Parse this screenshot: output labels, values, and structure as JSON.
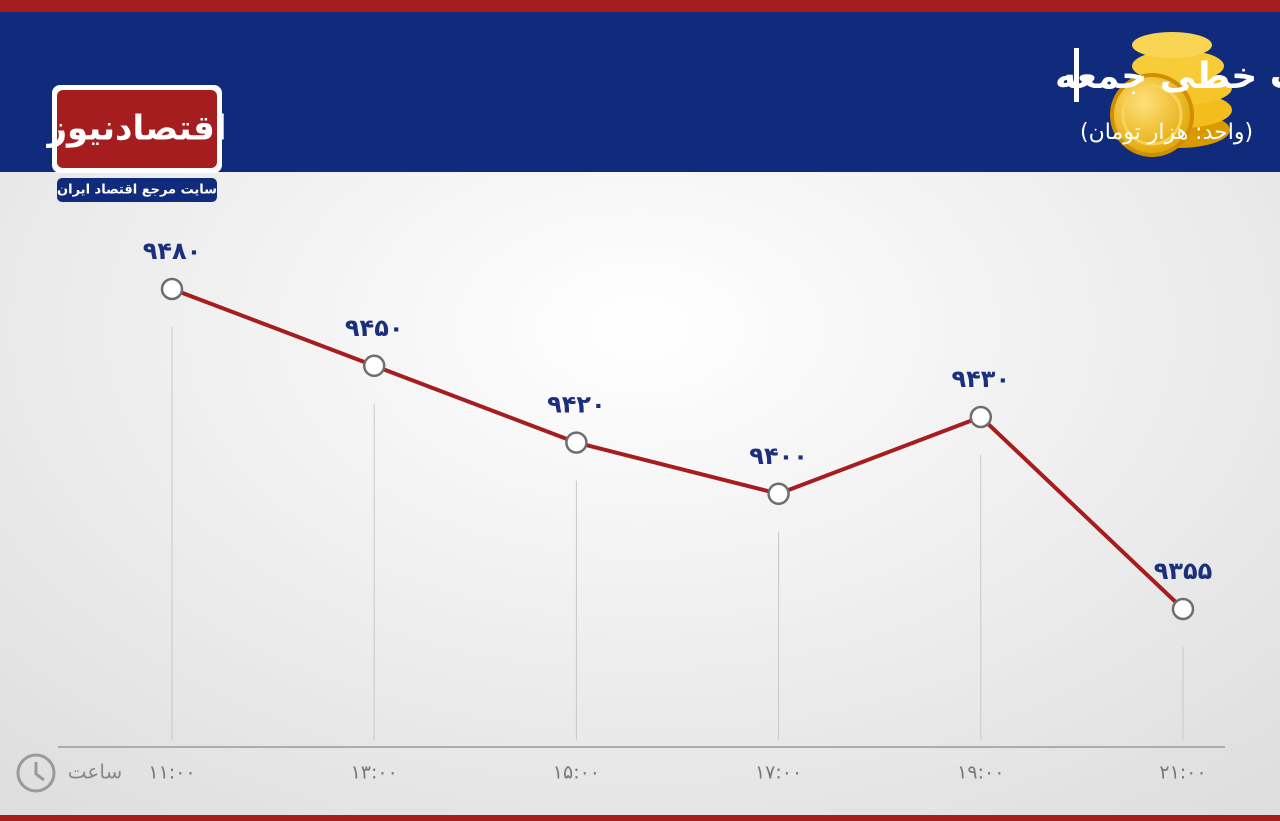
{
  "chart_data": {
    "type": "line",
    "title": "رفتار سکه در معاملات پشت خطی جمعه",
    "subtitle": "(واحد: هزار تومان)",
    "x_label": "ساعت",
    "categories": [
      "۱۱:۰۰",
      "۱۳:۰۰",
      "۱۵:۰۰",
      "۱۷:۰۰",
      "۱۹:۰۰",
      "۲۱:۰۰"
    ],
    "series": [
      {
        "color": "#a51d1f",
        "values": [
          9480,
          9450,
          9420,
          9400,
          9430,
          9355
        ],
        "value_labels": [
          "۹۴۸۰",
          "۹۴۵۰",
          "۹۴۲۰",
          "۹۴۰۰",
          "۹۴۳۰",
          "۹۳۵۵"
        ]
      }
    ]
  },
  "branding": {
    "logo": "اقتصادنیوز",
    "tagline": "سایت مرجع اقتصاد ایران"
  }
}
